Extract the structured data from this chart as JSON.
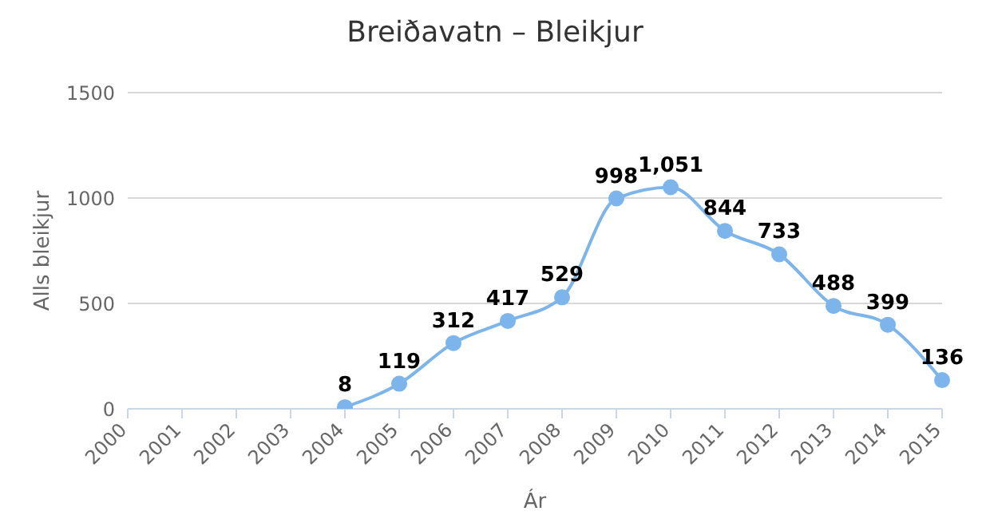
{
  "chart_data": {
    "type": "line",
    "title": "Breiðavatn – Bleikjur",
    "xlabel": "Ár",
    "ylabel": "Alls bleikjur",
    "categories": [
      "2000",
      "2001",
      "2002",
      "2003",
      "2004",
      "2005",
      "2006",
      "2007",
      "2008",
      "2009",
      "2010",
      "2011",
      "2012",
      "2013",
      "2014",
      "2015"
    ],
    "series": [
      {
        "color": "#7cb5ec",
        "values": [
          null,
          null,
          null,
          null,
          8,
          119,
          312,
          417,
          529,
          998,
          1051,
          844,
          733,
          488,
          399,
          136
        ],
        "value_labels": [
          null,
          null,
          null,
          null,
          "8",
          "119",
          "312",
          "417",
          "529",
          "998",
          "1,051",
          "844",
          "733",
          "488",
          "399",
          "136"
        ]
      }
    ],
    "ylim": [
      0,
      1500
    ],
    "yticks": [
      0,
      500,
      1000,
      1500
    ],
    "grid": "y",
    "marker": "circle",
    "line_style": "solid"
  }
}
